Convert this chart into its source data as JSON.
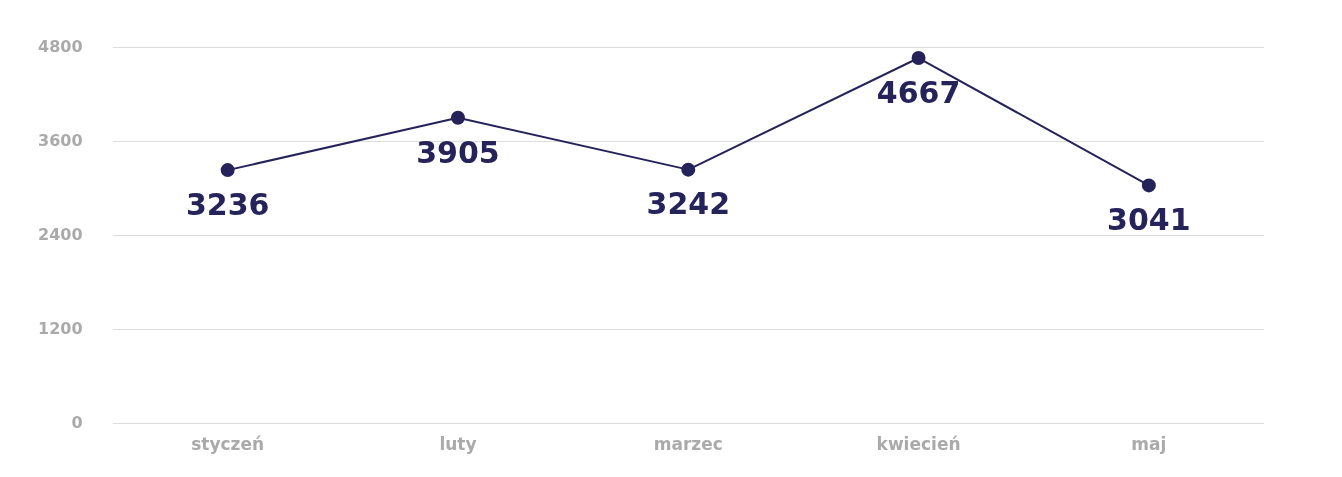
{
  "chart_data": {
    "type": "line",
    "categories": [
      "styczeń",
      "luty",
      "marzec",
      "kwiecień",
      "maj"
    ],
    "series": [
      {
        "color": "#25235a",
        "values": [
          3236,
          3905,
          3242,
          4667,
          3041
        ]
      }
    ],
    "ylim": [
      0,
      4800
    ],
    "yticks": [
      0,
      1200,
      2400,
      3600,
      4800
    ],
    "grid": "y",
    "marker": "circle",
    "line_style": "solid",
    "data_labels": true,
    "legend": false
  }
}
